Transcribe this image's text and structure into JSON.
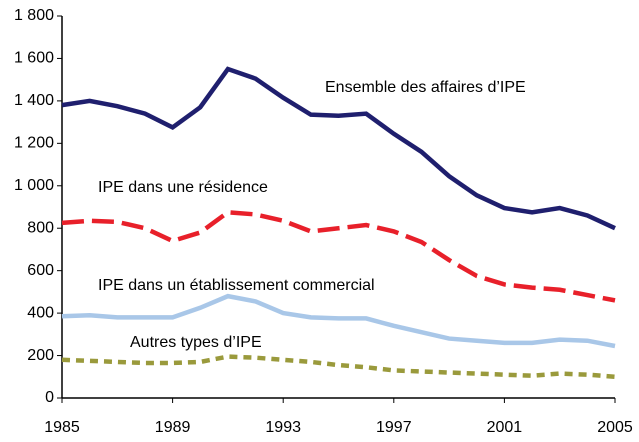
{
  "chart_data": {
    "type": "line",
    "x": [
      1985,
      1986,
      1987,
      1988,
      1989,
      1990,
      1991,
      1992,
      1993,
      1994,
      1995,
      1996,
      1997,
      1998,
      1999,
      2000,
      2001,
      2002,
      2003,
      2004,
      2005
    ],
    "series": [
      {
        "name": "Ensemble des affaires d’IPE",
        "color": "#1f1f6e",
        "dash": "solid",
        "values": [
          1380,
          1400,
          1375,
          1340,
          1275,
          1370,
          1550,
          1505,
          1415,
          1335,
          1330,
          1340,
          1245,
          1160,
          1045,
          955,
          895,
          875,
          895,
          860,
          800
        ]
      },
      {
        "name": "IPE dans une résidence",
        "color": "#e8202a",
        "dash": "dashed",
        "values": [
          825,
          835,
          830,
          800,
          740,
          780,
          875,
          865,
          835,
          785,
          800,
          815,
          785,
          735,
          650,
          575,
          535,
          520,
          510,
          485,
          460
        ]
      },
      {
        "name": "IPE dans un établissement commercial",
        "color": "#a9c7e8",
        "dash": "solid",
        "values": [
          385,
          390,
          380,
          380,
          380,
          425,
          480,
          455,
          400,
          380,
          375,
          375,
          340,
          310,
          280,
          270,
          260,
          260,
          275,
          270,
          245
        ]
      },
      {
        "name": "Autres types d’IPE",
        "color": "#9a9a3c",
        "dash": "dotted",
        "values": [
          180,
          175,
          170,
          165,
          165,
          170,
          195,
          190,
          180,
          170,
          155,
          145,
          130,
          125,
          120,
          115,
          110,
          105,
          115,
          110,
          100
        ]
      }
    ],
    "xlim": [
      1985,
      2005
    ],
    "xticks": [
      1985,
      1989,
      1993,
      1997,
      2001,
      2005
    ],
    "ylim": [
      0,
      1800
    ],
    "yticks": [
      0,
      200,
      400,
      600,
      800,
      {
        "value": 1000,
        "label": "1 000"
      },
      {
        "value": 1200,
        "label": "1 200"
      },
      {
        "value": 1400,
        "label": "1 400"
      },
      {
        "value": 1600,
        "label": "1 600"
      },
      {
        "value": 1800,
        "label": "1 800"
      }
    ],
    "grid": false
  }
}
